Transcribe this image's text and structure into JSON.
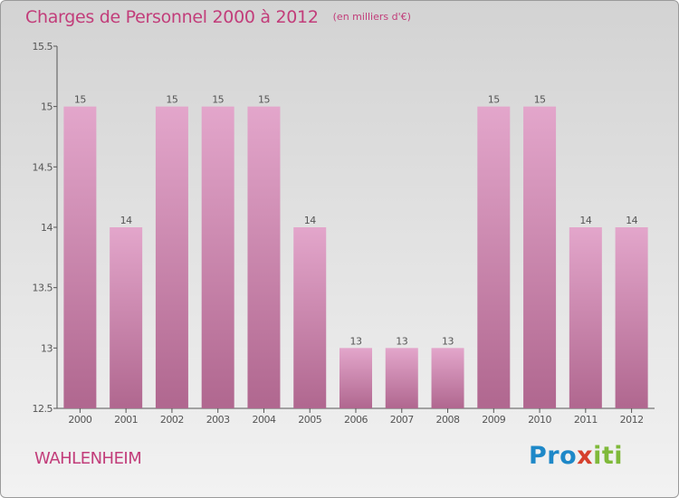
{
  "header": {
    "title": "Charges de Personnel 2000 à 2012",
    "unit": "(en milliers d'€)"
  },
  "commune": "WAHLENHEIM",
  "logo": {
    "text": "Proxiti"
  },
  "colors": {
    "accent": "#c23d7a",
    "bar_top": "#e3a6cb",
    "bar_bottom": "#b0678f",
    "axis": "#555555"
  },
  "chart_data": {
    "type": "bar",
    "title": "Charges de Personnel 2000 à 2012",
    "xlabel": "",
    "ylabel": "",
    "categories": [
      "2000",
      "2001",
      "2002",
      "2003",
      "2004",
      "2005",
      "2006",
      "2007",
      "2008",
      "2009",
      "2010",
      "2011",
      "2012"
    ],
    "values": [
      15,
      14,
      15,
      15,
      15,
      14,
      13,
      13,
      13,
      15,
      15,
      14,
      14
    ],
    "data_labels": [
      "15",
      "14",
      "15",
      "15",
      "15",
      "14",
      "13",
      "13",
      "13",
      "15",
      "15",
      "14",
      "14"
    ],
    "ylim": [
      12.5,
      15.5
    ],
    "yticks": [
      12.5,
      13,
      13.5,
      14,
      14.5,
      15,
      15.5
    ],
    "ytick_labels": [
      "12.5",
      "13",
      "13.5",
      "14",
      "14.5",
      "15",
      "15.5"
    ],
    "grid": false,
    "legend": "none"
  }
}
